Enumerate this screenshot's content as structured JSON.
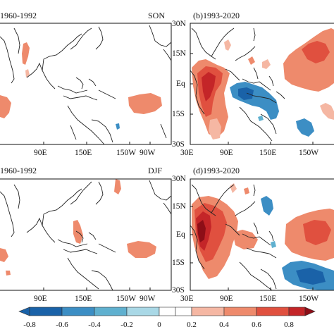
{
  "panels": {
    "a": {
      "title": "1960-1992",
      "season": "SON"
    },
    "b": {
      "title": "(b)1993-2020"
    },
    "c": {
      "title": "1960-1992",
      "season": "DJF"
    },
    "d": {
      "title": "(d)1993-2020"
    }
  },
  "x_ticks_left": [
    "90E",
    "150E",
    "150W",
    "90W"
  ],
  "x_ticks_right": [
    "30E",
    "90E",
    "150E",
    "150W"
  ],
  "y_ticks": [
    "30N",
    "15N",
    "Eq",
    "15S",
    "30S"
  ],
  "colorbar": {
    "ticks": [
      "-0.8",
      "-0.6",
      "-0.4",
      "-0.2",
      "0",
      "0.2",
      "0.4",
      "0.6",
      "0.8"
    ],
    "colors": [
      "#1a62a8",
      "#3c8ec4",
      "#5fb0cf",
      "#a9d8e6",
      "#ffffff",
      "#ffffff",
      "#f5b7a3",
      "#ee8a6c",
      "#e0503f",
      "#c42528",
      "#8d0e17"
    ]
  },
  "colors": {
    "coast": "#222222",
    "frame": "#111111"
  }
}
